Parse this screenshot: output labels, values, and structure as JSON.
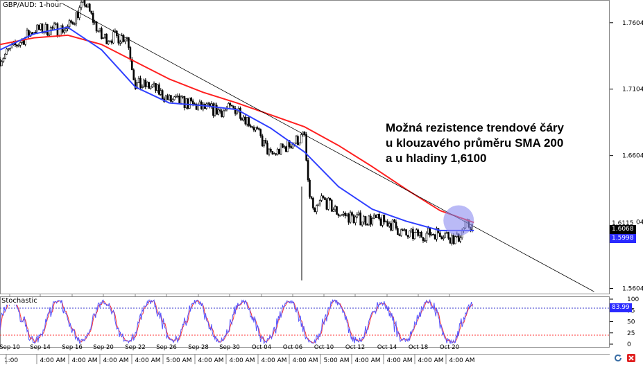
{
  "symbol_label": "GBP/AUD: 1-hour",
  "annotation": {
    "lines": [
      "Možná rezistence trendové čáry",
      "u klouzavého průměru SMA 200",
      "a u hladiny 1,6100"
    ]
  },
  "stochastic_label": "Stochastic",
  "colors": {
    "sma100": "#3040ff",
    "sma200": "#ff2020",
    "candles": "#000000",
    "stoch_k": "#5555ff",
    "stoch_d": "#ff3333",
    "highlight": "#8c8cf0",
    "dotted_blue": "#3333cc",
    "dotted_red": "#ff3333"
  },
  "price_tags": {
    "upper": "1.6115",
    "current": "1.6068",
    "sma": "1.5998"
  },
  "stoch_tag": "83.99",
  "chart_data": [
    {
      "type": "line",
      "title": "GBP/AUD: 1-hour",
      "x_labels": [
        "Sep 10",
        "Sep 14",
        "Sep 16",
        "Sep 20",
        "Sep 22",
        "Sep 26",
        "Sep 28",
        "Sep 30",
        "Oct 04",
        "Oct 06",
        "Oct 10",
        "Oct 12",
        "Oct 14",
        "Oct 18",
        "Oct 20"
      ],
      "time_labels": [
        "1:00",
        "4:00 AM",
        "4:00 AM",
        "4:00 AM",
        "4:00 AM",
        "5:00 AM",
        "4:00 AM",
        "4:00 AM",
        "4:00 AM",
        "4:00 AM",
        "5:00 AM",
        "4:00 AM",
        "4:00 AM",
        "4:00 AM",
        "4:00 AM"
      ],
      "y_ticks": [
        "1.7604",
        "1.7104",
        "1.6604",
        "1.6104",
        "1.5604"
      ],
      "ylim": [
        1.5565,
        1.7775
      ],
      "series": [
        {
          "name": "",
          "kind": "price",
          "x": [
            0,
            2,
            4,
            5,
            6,
            7.5,
            8,
            9,
            10,
            11,
            12,
            13,
            14,
            15,
            16,
            17,
            18,
            18.2,
            18.6,
            19,
            20,
            21,
            22,
            23,
            24,
            25,
            26,
            27,
            27.5,
            28
          ],
          "y": [
            1.733,
            1.755,
            1.756,
            1.776,
            1.749,
            1.75,
            1.714,
            1.712,
            1.702,
            1.7,
            1.696,
            1.694,
            1.696,
            1.682,
            1.66,
            1.668,
            1.675,
            1.637,
            1.615,
            1.628,
            1.617,
            1.613,
            1.612,
            1.61,
            1.6,
            1.601,
            1.603,
            1.597,
            1.608,
            1.607
          ]
        },
        {
          "name": "",
          "kind": "sma100",
          "x": [
            0,
            2,
            4,
            6,
            8,
            10,
            12,
            14,
            16,
            18,
            20,
            22,
            24,
            26,
            28
          ],
          "y": [
            1.74,
            1.752,
            1.757,
            1.74,
            1.712,
            1.7,
            1.698,
            1.695,
            1.681,
            1.663,
            1.637,
            1.62,
            1.611,
            1.604,
            1.604
          ]
        },
        {
          "name": "",
          "kind": "sma200",
          "x": [
            0,
            2,
            4,
            6,
            8,
            10,
            12,
            14,
            16,
            18,
            20,
            22,
            24,
            26,
            28
          ],
          "y": [
            1.744,
            1.749,
            1.751,
            1.744,
            1.731,
            1.718,
            1.708,
            1.7,
            1.691,
            1.682,
            1.668,
            1.652,
            1.635,
            1.619,
            1.61
          ]
        },
        {
          "name": "",
          "kind": "trendline",
          "x": [
            3.3,
            35.1
          ],
          "y": [
            1.7775,
            1.558
          ]
        }
      ]
    },
    {
      "type": "line",
      "title": "Stochastic",
      "y_ticks": [
        "100",
        "75",
        "50",
        "25",
        "0"
      ],
      "ylim": [
        0,
        100
      ],
      "levels": [
        80,
        20
      ],
      "current": 83.99
    }
  ]
}
